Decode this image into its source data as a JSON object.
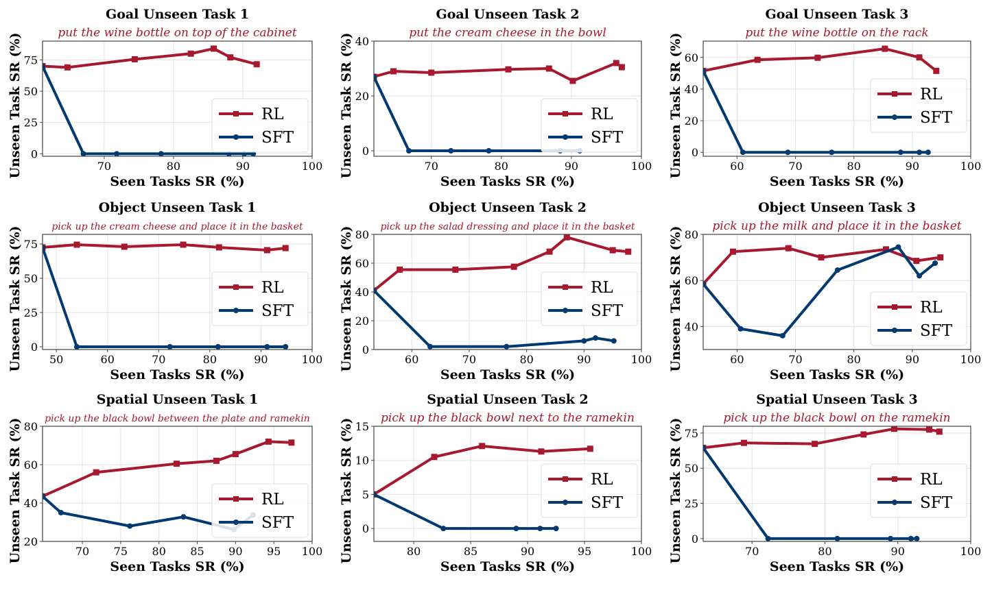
{
  "colors": {
    "RL": "#a6192e",
    "SFT": "#003a70"
  },
  "chart_data": [
    {
      "type": "line",
      "title": "Goal Unseen Task 1",
      "subtitle": "put the wine bottle on top of the cabinet",
      "xlabel": "Seen Tasks SR (%)",
      "ylabel": "Unseen Task SR (%)",
      "xlim": [
        61.1,
        100
      ],
      "ylim": [
        -2,
        90
      ],
      "xticks": [
        70,
        80,
        90,
        100
      ],
      "yticks": [
        0,
        25,
        50,
        75
      ],
      "grid": true,
      "legend": "lower right",
      "series": [
        {
          "name": "RL",
          "marker": "square",
          "x": [
            61.1,
            64.7,
            74.4,
            82.5,
            85.8,
            88.2,
            92
          ],
          "y": [
            70,
            69,
            75.5,
            80,
            84,
            77,
            71.5
          ]
        },
        {
          "name": "SFT",
          "marker": "circle",
          "x": [
            61.1,
            67,
            71.8,
            78.2,
            88,
            90.2,
            91.5
          ],
          "y": [
            70,
            0,
            0,
            0,
            0,
            0,
            0
          ]
        }
      ]
    },
    {
      "type": "line",
      "title": "Goal Unseen Task 2",
      "subtitle": "put the cream cheese in the bowl",
      "xlabel": "Seen Tasks SR (%)",
      "ylabel": "Unseen Task SR (%)",
      "xlim": [
        61.8,
        100
      ],
      "ylim": [
        -2,
        40
      ],
      "xticks": [
        70,
        80,
        90,
        100
      ],
      "yticks": [
        0,
        20,
        40
      ],
      "grid": true,
      "legend": "lower right",
      "series": [
        {
          "name": "RL",
          "marker": "square",
          "x": [
            61.8,
            64.6,
            70,
            81,
            86.8,
            90.2,
            96.4,
            97.2
          ],
          "y": [
            27,
            29,
            28.5,
            29.7,
            30,
            25.5,
            32,
            30.5
          ]
        },
        {
          "name": "SFT",
          "marker": "circle",
          "x": [
            61.8,
            66.8,
            72.8,
            78.2,
            88.4,
            91.2
          ],
          "y": [
            27,
            0,
            0,
            0,
            0,
            0
          ]
        }
      ]
    },
    {
      "type": "line",
      "title": "Goal Unseen Task 3",
      "subtitle": "put the wine bottle on the rack",
      "xlabel": "Seen Tasks SR (%)",
      "ylabel": "Unseen Task SR (%)",
      "xlim": [
        54.2,
        100
      ],
      "ylim": [
        -2.5,
        70.3
      ],
      "xticks": [
        60,
        70,
        80,
        90,
        100
      ],
      "yticks": [
        0,
        20,
        40,
        60
      ],
      "grid": true,
      "legend": "center right",
      "series": [
        {
          "name": "RL",
          "marker": "square",
          "x": [
            54.2,
            63.5,
            73.8,
            85.3,
            91.2,
            94.1
          ],
          "y": [
            51.5,
            58.5,
            59.8,
            65.5,
            60,
            51.5
          ]
        },
        {
          "name": "SFT",
          "marker": "circle",
          "x": [
            54.2,
            61,
            68.7,
            76.2,
            88,
            91.2,
            92.7
          ],
          "y": [
            51.5,
            0,
            0,
            0,
            0,
            0,
            0
          ]
        }
      ]
    },
    {
      "type": "line",
      "title": "Object Unseen Task 1",
      "subtitle": "pick up the cream cheese and place it in the basket",
      "xlabel": "Seen Tasks SR (%)",
      "ylabel": "Unseen Task SR (%)",
      "xlim": [
        47.3,
        100
      ],
      "ylim": [
        -2,
        82
      ],
      "xticks": [
        50,
        60,
        70,
        80,
        90,
        100
      ],
      "yticks": [
        0,
        25,
        50,
        75
      ],
      "grid": true,
      "legend": "center right",
      "series": [
        {
          "name": "RL",
          "marker": "square",
          "x": [
            47.3,
            54,
            63.3,
            74.8,
            81.8,
            91.2,
            94.8
          ],
          "y": [
            72.5,
            74.5,
            73,
            74.5,
            72.5,
            70.5,
            72
          ]
        },
        {
          "name": "SFT",
          "marker": "circle",
          "x": [
            47.3,
            54,
            72.2,
            81.6,
            91.2,
            94.8
          ],
          "y": [
            72.5,
            0,
            0,
            0,
            0,
            0
          ]
        }
      ]
    },
    {
      "type": "line",
      "title": "Object Unseen Task 2",
      "subtitle": "pick up the salad dressing and place it in the basket",
      "xlabel": "Seen Tasks SR (%)",
      "ylabel": "Unseen Task SR (%)",
      "xlim": [
        53.4,
        100
      ],
      "ylim": [
        0,
        80
      ],
      "xticks": [
        60,
        70,
        80,
        90,
        100
      ],
      "yticks": [
        0,
        20,
        40,
        60,
        80
      ],
      "grid": true,
      "legend": "center right",
      "series": [
        {
          "name": "RL",
          "marker": "square",
          "x": [
            53.4,
            57.9,
            67.6,
            77.8,
            84,
            87,
            95,
            97.7
          ],
          "y": [
            41,
            55.5,
            55.5,
            57.5,
            68,
            78,
            69,
            68
          ]
        },
        {
          "name": "SFT",
          "marker": "circle",
          "x": [
            53.4,
            63.2,
            76.5,
            90,
            92,
            95.2
          ],
          "y": [
            41,
            2,
            2,
            6,
            8,
            6
          ]
        }
      ]
    },
    {
      "type": "line",
      "title": "Object Unseen Task 3",
      "subtitle": "pick up the milk and place it in the basket",
      "xlabel": "Seen Tasks SR (%)",
      "ylabel": "Unseen Task SR (%)",
      "xlim": [
        54.2,
        100
      ],
      "ylim": [
        30,
        80
      ],
      "xticks": [
        60,
        70,
        80,
        90,
        100
      ],
      "yticks": [
        40,
        60,
        80
      ],
      "grid": true,
      "legend": "lower right",
      "series": [
        {
          "name": "RL",
          "marker": "square",
          "x": [
            54.2,
            59.3,
            68.8,
            74.4,
            85.5,
            90.7,
            94.8
          ],
          "y": [
            58.5,
            72.5,
            74,
            70,
            73.5,
            68.5,
            70
          ]
        },
        {
          "name": "SFT",
          "marker": "circle",
          "x": [
            54.2,
            60.6,
            67.8,
            77.2,
            87.6,
            91.2,
            93.9
          ],
          "y": [
            58.5,
            39,
            36,
            64.5,
            74.5,
            62,
            67.5
          ]
        }
      ]
    },
    {
      "type": "line",
      "title": "Spatial Unseen Task 1",
      "subtitle": "pick up the black bowl between the plate and ramekin",
      "xlabel": "Seen Tasks SR (%)",
      "ylabel": "Unseen Task SR (%)",
      "xlim": [
        64.8,
        100
      ],
      "ylim": [
        20,
        80
      ],
      "xticks": [
        70,
        75,
        80,
        85,
        90,
        95,
        100
      ],
      "yticks": [
        20,
        40,
        60,
        80
      ],
      "grid": true,
      "legend": "lower right",
      "series": [
        {
          "name": "RL",
          "marker": "square",
          "x": [
            64.8,
            71.8,
            82.3,
            87.5,
            90,
            94.3,
            97.3
          ],
          "y": [
            43.5,
            56,
            60.5,
            62,
            65.5,
            72,
            71.5
          ]
        },
        {
          "name": "SFT",
          "marker": "circle",
          "x": [
            64.8,
            67.2,
            76.2,
            83.2,
            89.8,
            92.3
          ],
          "y": [
            43.5,
            35,
            28,
            32.8,
            26.2,
            33.8
          ]
        }
      ]
    },
    {
      "type": "line",
      "title": "Spatial Unseen Task 2",
      "subtitle": "pick up the black bowl next to the ramekin",
      "xlabel": "Seen Tasks SR (%)",
      "ylabel": "Unseen Task SR (%)",
      "xlim": [
        76.5,
        100
      ],
      "ylim": [
        -1.9,
        15
      ],
      "xticks": [
        80,
        85,
        90,
        95,
        100
      ],
      "yticks": [
        0,
        5,
        10,
        15
      ],
      "grid": true,
      "legend": "center right",
      "series": [
        {
          "name": "RL",
          "marker": "square",
          "x": [
            76.5,
            81.8,
            86,
            91.2,
            95.5
          ],
          "y": [
            5,
            10.5,
            12.1,
            11.3,
            11.7
          ]
        },
        {
          "name": "SFT",
          "marker": "circle",
          "x": [
            76.5,
            82.6,
            89,
            91.1,
            92.5
          ],
          "y": [
            5,
            0,
            0,
            0,
            0
          ]
        }
      ]
    },
    {
      "type": "line",
      "title": "Spatial Unseen Task 3",
      "subtitle": "pick up the black bowl on the ramekin",
      "xlabel": "Seen Tasks SR (%)",
      "ylabel": "Unseen Task SR (%)",
      "xlim": [
        63.3,
        100
      ],
      "ylim": [
        -2,
        79.8
      ],
      "xticks": [
        70,
        80,
        90,
        100
      ],
      "yticks": [
        0,
        25,
        50,
        75
      ],
      "grid": true,
      "legend": "center right",
      "series": [
        {
          "name": "RL",
          "marker": "square",
          "x": [
            63.3,
            68.9,
            78.6,
            85.3,
            89.5,
            94.3,
            95.7
          ],
          "y": [
            64.5,
            68,
            67.3,
            74,
            78,
            77.5,
            76
          ]
        },
        {
          "name": "SFT",
          "marker": "circle",
          "x": [
            63.3,
            72.2,
            81.7,
            89,
            91.8,
            92.6
          ],
          "y": [
            64.5,
            0,
            0,
            0,
            0,
            0
          ]
        }
      ]
    }
  ]
}
